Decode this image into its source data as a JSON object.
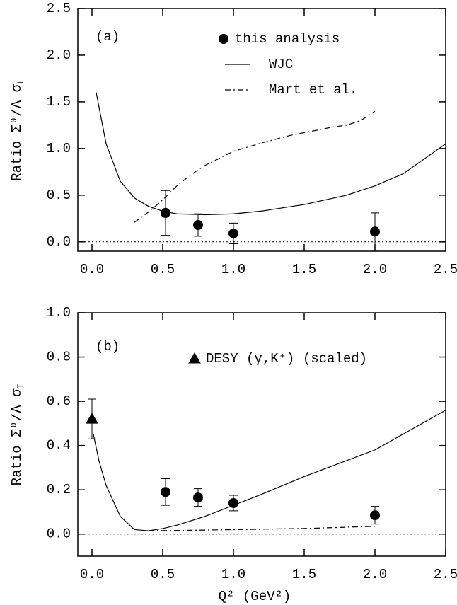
{
  "chart_data": [
    {
      "type": "line",
      "panel_label": "(a)",
      "ylabel": "Ratio Σ⁰/Λ σ",
      "ylabel_subscript": "L",
      "xlim": [
        -0.1,
        2.5
      ],
      "ylim": [
        -0.1,
        2.5
      ],
      "xticks": [
        {
          "value": 0,
          "label": "0.0"
        },
        {
          "value": 0.5,
          "label": "0.5"
        },
        {
          "value": 1,
          "label": "1.0"
        },
        {
          "value": 1.5,
          "label": "1.5"
        },
        {
          "value": 2,
          "label": "2.0"
        },
        {
          "value": 2.5,
          "label": "2.5"
        }
      ],
      "yticks": [
        {
          "value": 0,
          "label": "0.0"
        },
        {
          "value": 0.5,
          "label": "0.5"
        },
        {
          "value": 1,
          "label": "1.0"
        },
        {
          "value": 1.5,
          "label": "1.5"
        },
        {
          "value": 2,
          "label": "2.0"
        },
        {
          "value": 2.5,
          "label": "2.5"
        }
      ],
      "reference_line": 0,
      "series": [
        {
          "name": "this analysis",
          "style": "circle",
          "color": "#000000",
          "x": [
            0.52,
            0.75,
            1.0,
            2.0
          ],
          "values": [
            0.31,
            0.18,
            0.09,
            0.11
          ],
          "errors": [
            0.24,
            0.12,
            0.11,
            0.2
          ]
        },
        {
          "name": "WJC",
          "style": "solid",
          "color": "#000000",
          "x": [
            0.03,
            0.1,
            0.2,
            0.3,
            0.4,
            0.5,
            0.6,
            0.8,
            1.0,
            1.2,
            1.5,
            1.8,
            2.0,
            2.2,
            2.5
          ],
          "values": [
            1.6,
            1.05,
            0.65,
            0.47,
            0.38,
            0.33,
            0.3,
            0.29,
            0.3,
            0.33,
            0.4,
            0.5,
            0.6,
            0.73,
            1.05
          ]
        },
        {
          "name": "Mart et al.",
          "style": "dashdot",
          "color": "#000000",
          "x": [
            0.3,
            0.4,
            0.5,
            0.6,
            0.7,
            0.8,
            1.0,
            1.2,
            1.4,
            1.6,
            1.7,
            1.8,
            1.9,
            2.0
          ],
          "values": [
            0.21,
            0.32,
            0.45,
            0.6,
            0.72,
            0.82,
            0.97,
            1.06,
            1.14,
            1.2,
            1.23,
            1.25,
            1.3,
            1.4
          ]
        }
      ]
    },
    {
      "type": "line",
      "panel_label": "(b)",
      "ylabel": "Ratio Σ⁰/Λ σ",
      "ylabel_subscript": "T",
      "xlabel": "Q² (GeV²)",
      "xlim": [
        -0.1,
        2.5
      ],
      "ylim": [
        -0.1,
        1.0
      ],
      "xticks": [
        {
          "value": 0,
          "label": "0.0"
        },
        {
          "value": 0.5,
          "label": "0.5"
        },
        {
          "value": 1,
          "label": "1.0"
        },
        {
          "value": 1.5,
          "label": "1.5"
        },
        {
          "value": 2,
          "label": "2.0"
        },
        {
          "value": 2.5,
          "label": "2.5"
        }
      ],
      "yticks": [
        {
          "value": 0,
          "label": "0.0"
        },
        {
          "value": 0.2,
          "label": "0.2"
        },
        {
          "value": 0.4,
          "label": "0.4"
        },
        {
          "value": 0.6,
          "label": "0.6"
        },
        {
          "value": 0.8,
          "label": "0.8"
        },
        {
          "value": 1,
          "label": "1.0"
        }
      ],
      "reference_line": 0,
      "series": [
        {
          "name": "DESY (γ,K⁺) (scaled)",
          "style": "triangle",
          "color": "#000000",
          "x": [
            0.0
          ],
          "values": [
            0.52
          ],
          "errors": [
            0.09
          ]
        },
        {
          "style": "circle",
          "color": "#000000",
          "x": [
            0.52,
            0.75,
            1.0,
            2.0
          ],
          "values": [
            0.19,
            0.165,
            0.14,
            0.085
          ],
          "errors": [
            0.06,
            0.04,
            0.035,
            0.04
          ]
        },
        {
          "style": "solid",
          "color": "#000000",
          "x": [
            0.01,
            0.05,
            0.1,
            0.2,
            0.3,
            0.4,
            0.5,
            0.6,
            0.8,
            1.0,
            1.2,
            1.5,
            2.0,
            2.5
          ],
          "values": [
            0.45,
            0.33,
            0.22,
            0.08,
            0.02,
            0.015,
            0.025,
            0.04,
            0.08,
            0.13,
            0.18,
            0.26,
            0.38,
            0.56
          ]
        },
        {
          "style": "dashdot",
          "color": "#000000",
          "x": [
            0.4,
            0.7,
            1.0,
            1.5,
            2.0
          ],
          "values": [
            0.015,
            0.017,
            0.02,
            0.025,
            0.035
          ]
        }
      ]
    }
  ]
}
